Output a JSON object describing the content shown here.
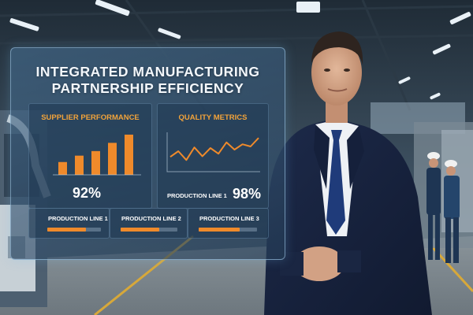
{
  "dashboard": {
    "title_line1": "INTEGRATED MANUFACTURING",
    "title_line2": "PARTNERSHIP EFFICIENCY",
    "supplier_performance": {
      "title": "SUPPLIER PERFORMANCE",
      "value": "92%",
      "bars": [
        0.28,
        0.42,
        0.52,
        0.7,
        0.88
      ]
    },
    "quality_metrics": {
      "title": "QUALITY METRICS",
      "line_label": "PRODUCTION LINE 1",
      "value": "98%",
      "trend": [
        0.32,
        0.5,
        0.22,
        0.62,
        0.34,
        0.6,
        0.42,
        0.78,
        0.55,
        0.72,
        0.65,
        0.92
      ]
    },
    "production_lines": [
      {
        "label": "PRODUCTION LINE 1",
        "progress": 0.72
      },
      {
        "label": "PRODUCTION LINE 2",
        "progress": 0.68
      },
      {
        "label": "PRODUCTION LINE 3",
        "progress": 0.7
      }
    ],
    "accent_color": "#ef8a2b",
    "title_accent_color": "#f2a33a"
  },
  "scene": {
    "setting": "factory floor",
    "people": [
      "businessman in navy suit",
      "workers in hard hats"
    ]
  }
}
